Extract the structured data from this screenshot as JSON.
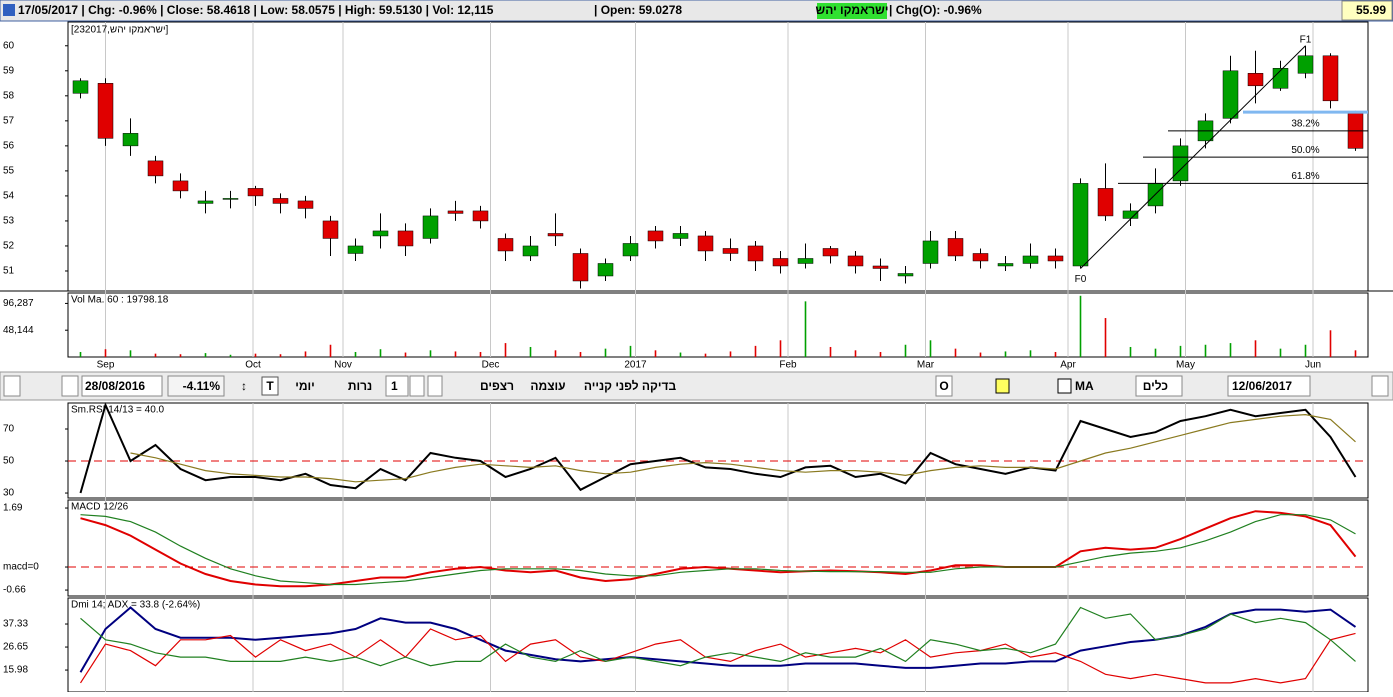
{
  "header": {
    "quote": "17/05/2017 | Chg: -0.96% | Close: 58.4618 | Low: 58.0575 | High: 59.5130 | Vol: 12,115",
    "open": "| Open: 59.0278",
    "symbol": "ישראמקו יהש",
    "chg_open": "| Chg(O): -0.96%",
    "last": "55.99"
  },
  "toolbar": {
    "from_date": "28/08/2016",
    "change": "-4.11%",
    "text_tool": "T",
    "daily": "יומי",
    "candles": "נרות",
    "step": "1",
    "sequences": "רצפים",
    "strength": "עוצמה",
    "check": "בדיקה לפני קנייה",
    "o_button": "O",
    "ma": "MA",
    "tools": "כלים",
    "to_date": "12/06/2017"
  },
  "x_axis": {
    "xlim": [
      -0.5,
      51.5
    ],
    "xticks": [
      {
        "value": 1.0,
        "label": "Sep"
      },
      {
        "value": 6.9,
        "label": "Oct"
      },
      {
        "value": 10.5,
        "label": "Nov"
      },
      {
        "value": 16.4,
        "label": "Dec"
      },
      {
        "value": 22.2,
        "label": "2017"
      },
      {
        "value": 28.3,
        "label": "Feb"
      },
      {
        "value": 33.8,
        "label": "Mar"
      },
      {
        "value": 39.5,
        "label": "Apr"
      },
      {
        "value": 44.2,
        "label": "May"
      },
      {
        "value": 49.3,
        "label": "Jun"
      }
    ]
  },
  "chart_data": [
    {
      "type": "candlestick",
      "title": "[ישראמקו יהש,232017]",
      "up_color": "#00a000",
      "down_color": "#e00000",
      "ylim": [
        50.2,
        60.95
      ],
      "yticks": [
        51,
        52,
        53,
        54,
        55,
        56,
        57,
        58,
        59,
        60
      ],
      "open": [
        58.1,
        58.5,
        56.0,
        55.4,
        54.6,
        53.7,
        53.9,
        54.3,
        53.9,
        53.8,
        53.0,
        51.7,
        52.4,
        52.6,
        52.3,
        53.4,
        53.4,
        52.3,
        51.6,
        52.5,
        51.7,
        50.8,
        51.6,
        52.6,
        52.3,
        52.4,
        51.9,
        52.0,
        51.5,
        51.3,
        51.9,
        51.6,
        51.2,
        50.8,
        51.3,
        52.3,
        51.7,
        51.2,
        51.3,
        51.6,
        51.2,
        54.3,
        53.1,
        53.6,
        54.6,
        56.2,
        57.1,
        58.9,
        58.3,
        58.9,
        59.6,
        57.3
      ],
      "high": [
        58.7,
        58.7,
        57.1,
        55.6,
        54.9,
        54.2,
        54.2,
        54.4,
        54.1,
        54.0,
        53.2,
        52.3,
        53.3,
        52.9,
        53.5,
        53.8,
        53.6,
        52.5,
        52.4,
        53.3,
        51.9,
        51.5,
        52.4,
        52.8,
        52.8,
        52.6,
        52.3,
        52.2,
        51.8,
        52.1,
        52.0,
        51.8,
        51.5,
        51.2,
        52.6,
        52.6,
        51.9,
        51.6,
        52.1,
        51.9,
        54.7,
        55.3,
        53.7,
        55.1,
        56.3,
        57.3,
        59.6,
        59.8,
        59.4,
        60.0,
        59.7,
        57.4
      ],
      "low": [
        57.9,
        56.0,
        55.6,
        54.5,
        53.9,
        53.3,
        53.5,
        53.6,
        53.3,
        53.1,
        51.6,
        51.4,
        51.9,
        51.6,
        52.1,
        53.0,
        52.7,
        51.4,
        51.4,
        52.0,
        50.3,
        50.6,
        51.4,
        51.9,
        52.0,
        51.4,
        51.4,
        51.0,
        50.9,
        51.1,
        51.3,
        50.9,
        50.6,
        50.5,
        51.1,
        51.4,
        51.1,
        51.0,
        51.1,
        51.1,
        51.1,
        53.0,
        52.8,
        53.3,
        54.4,
        55.9,
        56.9,
        57.7,
        58.2,
        58.7,
        57.5,
        55.8
      ],
      "close": [
        58.6,
        56.3,
        56.5,
        54.8,
        54.2,
        53.8,
        53.9,
        54.0,
        53.7,
        53.5,
        52.3,
        52.0,
        52.6,
        52.0,
        53.2,
        53.3,
        53.0,
        51.8,
        52.0,
        52.4,
        50.6,
        51.3,
        52.1,
        52.2,
        52.5,
        51.8,
        51.7,
        51.4,
        51.2,
        51.5,
        51.6,
        51.2,
        51.1,
        50.9,
        52.2,
        51.6,
        51.4,
        51.3,
        51.6,
        51.4,
        54.5,
        53.2,
        53.4,
        54.5,
        56.0,
        57.0,
        59.0,
        58.4,
        59.1,
        59.6,
        57.8,
        55.9
      ],
      "fib": {
        "start": {
          "x": 40,
          "y": 51.1,
          "label": "F0"
        },
        "end": {
          "x": 49,
          "y": 60,
          "label": "F1"
        },
        "levels": [
          {
            "value": 56.6,
            "label": "38.2%"
          },
          {
            "value": 55.55,
            "label": "50.0%"
          },
          {
            "value": 54.5,
            "label": "61.8%"
          }
        ]
      },
      "support_line": {
        "value": 57.35,
        "x": [
          46.5,
          51.5
        ],
        "color": "#80b8f0"
      }
    },
    {
      "type": "bar",
      "title": "Vol Ma. 60 : 19798.18",
      "ylim": [
        0,
        115000
      ],
      "yticks": [
        {
          "value": 48144,
          "label": "48,144"
        },
        {
          "value": 96287,
          "label": "96,287"
        }
      ],
      "values": [
        9000,
        14000,
        12000,
        6000,
        5000,
        7000,
        4000,
        6000,
        5000,
        10000,
        22000,
        9000,
        14000,
        8000,
        12000,
        10000,
        9000,
        25000,
        18000,
        12000,
        9000,
        15000,
        20000,
        12000,
        8000,
        6000,
        10000,
        20000,
        30000,
        100000,
        18000,
        12000,
        9000,
        22000,
        30000,
        15000,
        8000,
        10000,
        12000,
        9000,
        110000,
        70000,
        18000,
        15000,
        20000,
        22000,
        25000,
        30000,
        15000,
        22000,
        48000,
        12000
      ]
    },
    {
      "type": "line",
      "title": "Sm.RSI 14/13 = 40.0",
      "ylim": [
        26.9,
        86.25
      ],
      "yticks": [
        30,
        50,
        70
      ],
      "reference": 50,
      "series": [
        {
          "color": "#000000",
          "values": [
            30,
            85,
            50,
            60,
            45,
            38,
            40,
            40,
            38,
            42,
            35,
            33,
            45,
            38,
            55,
            52,
            50,
            40,
            45,
            52,
            32,
            40,
            48,
            50,
            52,
            46,
            45,
            42,
            40,
            46,
            47,
            40,
            42,
            36,
            55,
            48,
            45,
            42,
            46,
            44,
            75,
            70,
            65,
            68,
            75,
            78,
            82,
            78,
            80,
            82,
            65,
            40
          ]
        },
        {
          "color": "#8a7a20",
          "values": [
            null,
            null,
            55,
            52,
            48,
            44,
            42,
            41,
            40,
            40,
            39,
            37,
            38,
            39,
            43,
            46,
            48,
            47,
            46,
            47,
            44,
            42,
            43,
            46,
            48,
            49,
            48,
            46,
            44,
            43,
            44,
            44,
            43,
            41,
            44,
            46,
            47,
            46,
            46,
            45,
            50,
            55,
            58,
            62,
            66,
            70,
            74,
            76,
            78,
            79,
            76,
            62
          ]
        }
      ]
    },
    {
      "type": "line",
      "title": "MACD 12/26",
      "ylim": [
        -0.83,
        1.92
      ],
      "yticks": [
        1.69,
        {
          "value": 0,
          "label": "macd=0"
        },
        -0.66
      ],
      "reference": 0,
      "series": [
        {
          "color": "#e00000",
          "values": [
            1.4,
            1.2,
            0.9,
            0.5,
            0.1,
            -0.2,
            -0.4,
            -0.5,
            -0.55,
            -0.55,
            -0.5,
            -0.4,
            -0.3,
            -0.3,
            -0.15,
            -0.05,
            0.0,
            -0.1,
            -0.15,
            -0.1,
            -0.3,
            -0.4,
            -0.35,
            -0.2,
            -0.05,
            0,
            -0.05,
            -0.1,
            -0.15,
            -0.12,
            -0.1,
            -0.12,
            -0.15,
            -0.2,
            -0.1,
            0.05,
            0.05,
            0.0,
            0.0,
            0.0,
            0.45,
            0.55,
            0.5,
            0.55,
            0.8,
            1.1,
            1.4,
            1.6,
            1.55,
            1.45,
            1.2,
            0.3
          ]
        },
        {
          "color": "#208020",
          "values": [
            1.5,
            1.45,
            1.3,
            1.0,
            0.6,
            0.25,
            -0.05,
            -0.25,
            -0.4,
            -0.45,
            -0.5,
            -0.5,
            -0.45,
            -0.4,
            -0.3,
            -0.2,
            -0.1,
            -0.05,
            -0.05,
            -0.05,
            -0.1,
            -0.2,
            -0.25,
            -0.25,
            -0.15,
            -0.1,
            -0.05,
            -0.05,
            -0.1,
            -0.12,
            -0.13,
            -0.13,
            -0.13,
            -0.15,
            -0.15,
            -0.05,
            0.0,
            0.0,
            0.0,
            0.0,
            0.15,
            0.3,
            0.4,
            0.45,
            0.55,
            0.75,
            1.0,
            1.3,
            1.5,
            1.5,
            1.35,
            0.95
          ]
        }
      ]
    },
    {
      "type": "line",
      "title": "Dmi 14; ADX = 33.8 (-2.64%)",
      "ylim": [
        5.8,
        49.4
      ],
      "yticks": [
        37.33,
        26.65,
        15.98
      ],
      "series": [
        {
          "color": "#000080",
          "values": [
            15,
            35,
            45,
            35,
            31,
            31,
            31,
            30,
            31,
            32,
            33,
            35,
            40,
            38,
            38,
            35,
            30,
            25,
            23,
            21,
            20,
            21,
            22,
            21,
            20,
            19,
            18,
            18,
            18,
            19,
            19,
            19,
            18,
            17,
            17,
            18,
            19,
            19,
            20,
            20,
            25,
            27,
            29,
            30,
            32,
            36,
            42,
            44,
            44,
            43,
            44,
            36
          ]
        },
        {
          "color": "#e00000",
          "values": [
            10,
            28,
            25,
            18,
            30,
            30,
            32,
            22,
            30,
            25,
            28,
            22,
            30,
            22,
            35,
            30,
            32,
            20,
            28,
            30,
            22,
            20,
            24,
            28,
            30,
            22,
            20,
            25,
            28,
            22,
            24,
            26,
            24,
            30,
            22,
            24,
            25,
            28,
            22,
            24,
            20,
            14,
            12,
            14,
            12,
            10,
            10,
            12,
            10,
            12,
            30,
            33
          ]
        },
        {
          "color": "#208020",
          "values": [
            40,
            30,
            28,
            24,
            22,
            22,
            20,
            20,
            20,
            22,
            20,
            22,
            18,
            22,
            18,
            20,
            20,
            28,
            22,
            20,
            25,
            20,
            22,
            20,
            18,
            22,
            24,
            22,
            20,
            24,
            22,
            22,
            26,
            20,
            30,
            28,
            25,
            26,
            24,
            28,
            45,
            40,
            42,
            30,
            32,
            35,
            42,
            38,
            40,
            38,
            30,
            20
          ]
        }
      ]
    }
  ]
}
